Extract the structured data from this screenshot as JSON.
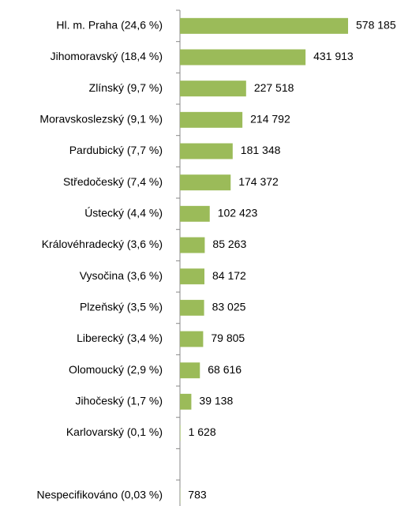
{
  "chart_data": {
    "type": "bar",
    "orientation": "horizontal",
    "color": "#9bbb59",
    "categories": [
      "Hl. m. Praha (24,6 %)",
      "Jihomoravský (18,4 %)",
      "Zlínský (9,7 %)",
      "Moravskoslezský (9,1 %)",
      "Pardubický (7,7 %)",
      "Středočeský (7,4 %)",
      "Ústecký (4,4 %)",
      "Královéhradecký (3,6 %)",
      "Vysočina (3,6 %)",
      "Plzeňský (3,5 %)",
      "Liberecký (3,4 %)",
      "Olomoucký (2,9 %)",
      "Jihočeský (1,7 %)",
      "Karlovarský (0,1 %)",
      null,
      "Nespecifikováno (0,03 %)"
    ],
    "values": [
      578185,
      431913,
      227518,
      214792,
      181348,
      174372,
      102423,
      85263,
      84172,
      83025,
      79805,
      68616,
      39138,
      1628,
      null,
      783
    ],
    "value_labels": [
      "578 185",
      "431 913",
      "227 518",
      "214 792",
      "181 348",
      "174 372",
      "102 423",
      "85 263",
      "84 172",
      "83 025",
      "79 805",
      "68 616",
      "39 138",
      "1 628",
      null,
      "783"
    ]
  }
}
